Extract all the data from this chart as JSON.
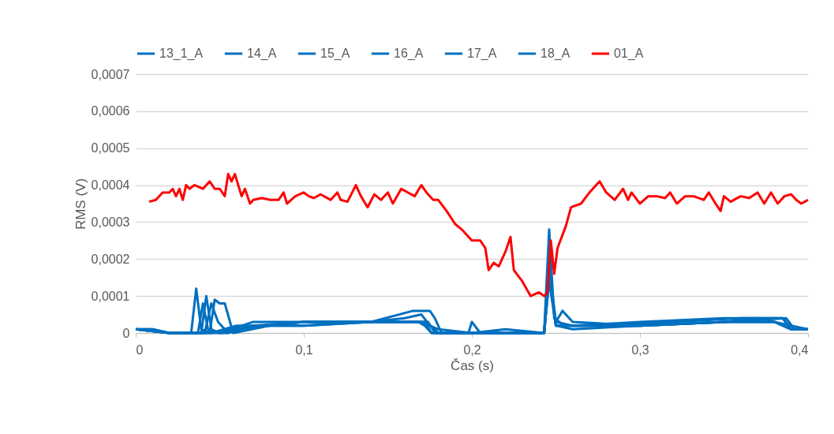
{
  "chart_data": {
    "type": "line",
    "xlabel": "Čas (s)",
    "ylabel": "RMS (V)",
    "xlim": [
      0,
      0.4
    ],
    "ylim": [
      0,
      0.0007
    ],
    "xticks": [
      0,
      {
        "value": 0.1,
        "label": "0,1"
      },
      {
        "value": 0.2,
        "label": "0,2"
      },
      {
        "value": 0.3,
        "label": "0,3"
      },
      {
        "value": 0.4,
        "label": "0,4"
      }
    ],
    "yticks": [
      0,
      {
        "value": 0.0001,
        "label": "0,0001"
      },
      {
        "value": 0.0002,
        "label": "0,0002"
      },
      {
        "value": 0.0003,
        "label": "0,0003"
      },
      {
        "value": 0.0004,
        "label": "0,0004"
      },
      {
        "value": 0.0005,
        "label": "0,0005"
      },
      {
        "value": 0.0006,
        "label": "0,0006"
      },
      {
        "value": 0.0007,
        "label": "0,0007"
      }
    ],
    "grid": "y",
    "legend": "top",
    "line_style": "solid",
    "marker": "none",
    "series": [
      {
        "name": "13_1_A",
        "color": "#0070c0",
        "x": [
          0,
          0.01,
          0.02,
          0.033,
          0.036,
          0.039,
          0.045,
          0.06,
          0.08,
          0.1,
          0.14,
          0.16,
          0.172,
          0.176,
          0.18,
          0.2,
          0.22,
          0.243,
          0.246,
          0.249,
          0.255,
          0.27,
          0.3,
          0.35,
          0.38,
          0.39,
          0.4
        ],
        "values": [
          1e-05,
          1e-05,
          0,
          0,
          0.00012,
          1e-05,
          0,
          2e-05,
          2e-05,
          3e-05,
          3e-05,
          3e-05,
          3e-05,
          0,
          0,
          0,
          0,
          0,
          0.00028,
          4e-05,
          2e-05,
          2e-05,
          2e-05,
          3e-05,
          3e-05,
          1e-05,
          1e-05
        ]
      },
      {
        "name": "14_A",
        "color": "#0070c0",
        "x": [
          0,
          0.02,
          0.037,
          0.04,
          0.043,
          0.05,
          0.07,
          0.1,
          0.14,
          0.16,
          0.17,
          0.175,
          0.18,
          0.2,
          0.243,
          0.246,
          0.25,
          0.26,
          0.3,
          0.35,
          0.385,
          0.39,
          0.4
        ],
        "values": [
          1e-05,
          0,
          0,
          8e-05,
          1e-05,
          0,
          2e-05,
          3e-05,
          3e-05,
          4e-05,
          5e-05,
          2e-05,
          0,
          0,
          0,
          0.00018,
          3e-05,
          2e-05,
          3e-05,
          4e-05,
          4e-05,
          1e-05,
          1e-05
        ]
      },
      {
        "name": "15_A",
        "color": "#0070c0",
        "x": [
          0,
          0.02,
          0.039,
          0.042,
          0.045,
          0.05,
          0.07,
          0.1,
          0.14,
          0.165,
          0.175,
          0.178,
          0.182,
          0.2,
          0.243,
          0.246,
          0.25,
          0.254,
          0.26,
          0.3,
          0.35,
          0.387,
          0.392,
          0.4
        ],
        "values": [
          1e-05,
          0,
          0,
          0.0001,
          1e-05,
          0,
          3e-05,
          3e-05,
          3e-05,
          6e-05,
          6e-05,
          4e-05,
          0,
          0,
          0,
          0.00016,
          3e-05,
          6e-05,
          3e-05,
          2e-05,
          3e-05,
          4e-05,
          1e-05,
          1e-05
        ]
      },
      {
        "name": "16_A",
        "color": "#0070c0",
        "x": [
          0,
          0.02,
          0.041,
          0.045,
          0.049,
          0.055,
          0.07,
          0.1,
          0.14,
          0.168,
          0.172,
          0.176,
          0.2,
          0.243,
          0.246,
          0.25,
          0.27,
          0.3,
          0.35,
          0.38,
          0.39,
          0.4
        ],
        "values": [
          1e-05,
          0,
          0,
          8e-05,
          3e-05,
          0,
          2e-05,
          2e-05,
          3e-05,
          3e-05,
          2e-05,
          0,
          0,
          0,
          0.00015,
          2e-05,
          2e-05,
          2e-05,
          3e-05,
          3e-05,
          1e-05,
          1e-05
        ]
      },
      {
        "name": "17_A",
        "color": "#0070c0",
        "x": [
          0,
          0.02,
          0.044,
          0.047,
          0.05,
          0.053,
          0.058,
          0.08,
          0.1,
          0.14,
          0.17,
          0.174,
          0.178,
          0.198,
          0.2,
          0.205,
          0.243,
          0.246,
          0.25,
          0.28,
          0.32,
          0.36,
          0.385,
          0.39,
          0.4
        ],
        "values": [
          1e-05,
          0,
          0,
          9e-05,
          8e-05,
          8e-05,
          0,
          2e-05,
          3e-05,
          3e-05,
          3e-05,
          3e-05,
          0,
          0,
          3e-05,
          0,
          0,
          0.00017,
          2e-05,
          2e-05,
          3e-05,
          4e-05,
          4e-05,
          1e-05,
          1e-05
        ]
      },
      {
        "name": "18_A",
        "color": "#0070c0",
        "x": [
          0,
          0.01,
          0.02,
          0.04,
          0.055,
          0.06,
          0.08,
          0.1,
          0.14,
          0.17,
          0.18,
          0.2,
          0.22,
          0.243,
          0.246,
          0.25,
          0.26,
          0.3,
          0.35,
          0.37,
          0.39,
          0.4
        ],
        "values": [
          1e-05,
          1e-05,
          0,
          0,
          0,
          1e-05,
          2e-05,
          2e-05,
          3e-05,
          3e-05,
          1e-05,
          0,
          1e-05,
          0,
          0.00014,
          2e-05,
          1e-05,
          2e-05,
          3e-05,
          4e-05,
          2e-05,
          1e-05
        ]
      },
      {
        "name": "01_A",
        "color": "#ff0000",
        "x": [
          0.008,
          0.012,
          0.016,
          0.02,
          0.022,
          0.024,
          0.026,
          0.028,
          0.03,
          0.032,
          0.035,
          0.04,
          0.044,
          0.047,
          0.05,
          0.053,
          0.055,
          0.057,
          0.059,
          0.063,
          0.065,
          0.068,
          0.07,
          0.075,
          0.08,
          0.085,
          0.088,
          0.09,
          0.095,
          0.1,
          0.103,
          0.106,
          0.11,
          0.116,
          0.12,
          0.122,
          0.126,
          0.131,
          0.134,
          0.138,
          0.142,
          0.146,
          0.15,
          0.153,
          0.158,
          0.162,
          0.166,
          0.17,
          0.173,
          0.177,
          0.18,
          0.185,
          0.19,
          0.194,
          0.2,
          0.205,
          0.208,
          0.21,
          0.213,
          0.216,
          0.22,
          0.223,
          0.225,
          0.23,
          0.235,
          0.24,
          0.243,
          0.245,
          0.247,
          0.249,
          0.251,
          0.256,
          0.259,
          0.265,
          0.27,
          0.274,
          0.276,
          0.28,
          0.285,
          0.29,
          0.293,
          0.295,
          0.3,
          0.305,
          0.31,
          0.315,
          0.318,
          0.322,
          0.327,
          0.332,
          0.338,
          0.341,
          0.345,
          0.348,
          0.35,
          0.354,
          0.36,
          0.365,
          0.37,
          0.374,
          0.378,
          0.382,
          0.386,
          0.39,
          0.393,
          0.396,
          0.4
        ],
        "values": [
          0.000355,
          0.00036,
          0.00038,
          0.00038,
          0.00039,
          0.00037,
          0.00039,
          0.00036,
          0.0004,
          0.00039,
          0.0004,
          0.00039,
          0.00041,
          0.00039,
          0.00039,
          0.00037,
          0.00043,
          0.00041,
          0.00043,
          0.00037,
          0.00039,
          0.00035,
          0.00036,
          0.000365,
          0.00036,
          0.00036,
          0.00038,
          0.00035,
          0.00037,
          0.00038,
          0.00037,
          0.000365,
          0.000375,
          0.00036,
          0.00038,
          0.00036,
          0.000355,
          0.0004,
          0.00037,
          0.00034,
          0.000375,
          0.00036,
          0.00038,
          0.00035,
          0.00039,
          0.00038,
          0.00037,
          0.0004,
          0.00038,
          0.00036,
          0.00036,
          0.00033,
          0.000295,
          0.00028,
          0.00025,
          0.00025,
          0.00023,
          0.00017,
          0.00019,
          0.00018,
          0.00022,
          0.00026,
          0.00017,
          0.00014,
          0.0001,
          0.00011,
          0.0001,
          0.00011,
          0.00025,
          0.00016,
          0.00023,
          0.00029,
          0.00034,
          0.00035,
          0.00038,
          0.0004,
          0.00041,
          0.00038,
          0.00036,
          0.00039,
          0.00036,
          0.00038,
          0.00035,
          0.00037,
          0.00037,
          0.000365,
          0.00038,
          0.00035,
          0.00037,
          0.00037,
          0.00036,
          0.00038,
          0.00035,
          0.00033,
          0.00037,
          0.000355,
          0.00037,
          0.000365,
          0.00038,
          0.00035,
          0.00038,
          0.00035,
          0.00037,
          0.000375,
          0.00036,
          0.00035,
          0.00036
        ]
      }
    ]
  }
}
